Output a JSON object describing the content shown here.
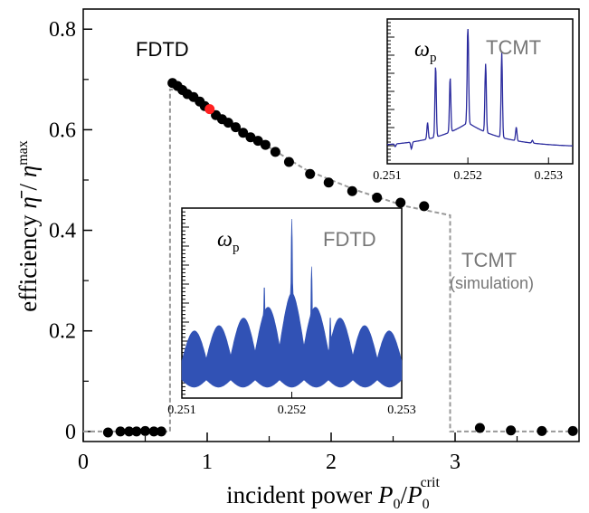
{
  "chart_data": [
    {
      "type": "scatter",
      "xlabel_main": "incident power ",
      "xlabel_math": "P",
      "xlabel_sub": "0",
      "xlabel_slash": "/",
      "xlabel_math2": "P",
      "xlabel_sub2": "0",
      "xlabel_sup2": "crit",
      "ylabel_main": "efficiency ",
      "ylabel_math": "η̄",
      "ylabel_slash": " / ",
      "ylabel_math2": "η",
      "ylabel_sup": "max",
      "xlim": [
        0,
        4.0
      ],
      "ylim": [
        -0.02,
        0.84
      ],
      "xticks": [
        0,
        1,
        2,
        3
      ],
      "xtick_labels": [
        "0",
        "1",
        "2",
        "3"
      ],
      "yticks": [
        0,
        0.2,
        0.4,
        0.6,
        0.8
      ],
      "ytick_labels": [
        "0",
        "0.2",
        "0.4",
        "0.6",
        "0.8"
      ],
      "annotations": {
        "fdtd": "FDTD",
        "tcmt": "TCMT",
        "tcmt_sub": "(simulation)"
      },
      "series": [
        {
          "name": "FDTD",
          "style": "points",
          "color": "#000000",
          "points": [
            [
              0.2,
              -0.002
            ],
            [
              0.3,
              0.0
            ],
            [
              0.37,
              0.0
            ],
            [
              0.43,
              0.0
            ],
            [
              0.5,
              0.001
            ],
            [
              0.57,
              0.0
            ],
            [
              0.63,
              0.0
            ],
            [
              0.72,
              0.693
            ],
            [
              0.76,
              0.687
            ],
            [
              0.8,
              0.679
            ],
            [
              0.84,
              0.671
            ],
            [
              0.89,
              0.665
            ],
            [
              0.94,
              0.656
            ],
            [
              0.98,
              0.647
            ],
            [
              1.07,
              0.629
            ],
            [
              1.12,
              0.621
            ],
            [
              1.17,
              0.614
            ],
            [
              1.23,
              0.605
            ],
            [
              1.29,
              0.594
            ],
            [
              1.35,
              0.585
            ],
            [
              1.41,
              0.578
            ],
            [
              1.47,
              0.57
            ],
            [
              1.55,
              0.556
            ],
            [
              1.66,
              0.536
            ],
            [
              1.83,
              0.512
            ],
            [
              1.98,
              0.495
            ],
            [
              2.17,
              0.478
            ],
            [
              2.37,
              0.465
            ],
            [
              2.56,
              0.455
            ],
            [
              2.75,
              0.448
            ],
            [
              3.2,
              0.007
            ],
            [
              3.45,
              0.002
            ],
            [
              3.7,
              0.001
            ],
            [
              3.95,
              0.001
            ]
          ]
        },
        {
          "name": "FDTD-highlight",
          "style": "points",
          "color": "#ff2020",
          "points": [
            [
              1.02,
              0.641
            ]
          ]
        },
        {
          "name": "TCMT (simulation)",
          "style": "dashed-line",
          "color": "#999999",
          "points": [
            [
              0.0,
              0.0
            ],
            [
              0.7,
              0.0
            ],
            [
              0.7,
              0.68
            ],
            [
              0.8,
              0.678
            ],
            [
              1.0,
              0.645
            ],
            [
              1.4,
              0.58
            ],
            [
              1.8,
              0.52
            ],
            [
              2.2,
              0.48
            ],
            [
              2.6,
              0.448
            ],
            [
              2.96,
              0.43
            ],
            [
              2.96,
              0.0
            ],
            [
              4.0,
              0.0
            ]
          ]
        }
      ]
    },
    {
      "type": "line",
      "inset": "TCMT spectrum",
      "label_math": "ω",
      "label_sub": "p",
      "label_text": "TCMT",
      "xlim": [
        0.251,
        0.2533
      ],
      "xtick_labels": [
        "0.251",
        "0.252",
        "0.253"
      ],
      "xticks": [
        0.251,
        0.252,
        0.253
      ],
      "color": "#2b2b9e",
      "peaks": [
        [
          0.2511,
          0.18
        ],
        [
          0.2513,
          0.15
        ],
        [
          0.2515,
          0.32
        ],
        [
          0.2516,
          0.72
        ],
        [
          0.25178,
          0.6
        ],
        [
          0.252,
          0.96
        ],
        [
          0.25222,
          0.7
        ],
        [
          0.25242,
          0.82
        ],
        [
          0.2526,
          0.3
        ],
        [
          0.2528,
          0.22
        ]
      ]
    },
    {
      "type": "line",
      "inset": "FDTD spectrum",
      "label_math": "ω",
      "label_sub": "p",
      "label_text": "FDTD",
      "xlim": [
        0.251,
        0.253
      ],
      "xtick_labels": [
        "0.251",
        "0.252",
        "0.253"
      ],
      "xticks": [
        0.251,
        0.252,
        0.253
      ],
      "color": "#3152b5",
      "peaks": [
        [
          0.25155,
          0.4
        ],
        [
          0.25175,
          0.62
        ],
        [
          0.252,
          0.98
        ],
        [
          0.25218,
          0.72
        ],
        [
          0.25235,
          0.45
        ]
      ]
    }
  ]
}
